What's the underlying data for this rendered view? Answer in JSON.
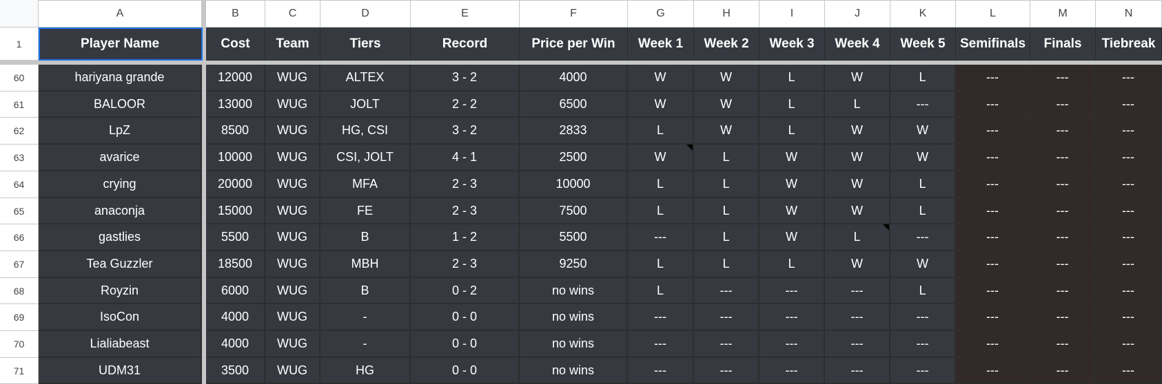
{
  "columns": [
    "A",
    "B",
    "C",
    "D",
    "E",
    "F",
    "G",
    "H",
    "I",
    "J",
    "K",
    "L",
    "M",
    "N"
  ],
  "headers": [
    "Player Name",
    "Cost",
    "Team",
    "Tiers",
    "Record",
    "Price per Win",
    "Week 1",
    "Week 2",
    "Week 3",
    "Week 4",
    "Week 5",
    "Semifinals",
    "Finals",
    "Tiebreak"
  ],
  "header_row_number": "1",
  "selected_cell": "A1",
  "rows": [
    {
      "num": "60",
      "cells": [
        "hariyana grande",
        "12000",
        "WUG",
        "ALTEX",
        "3 - 2",
        "4000",
        "W",
        "W",
        "L",
        "W",
        "L",
        "---",
        "---",
        "---"
      ]
    },
    {
      "num": "61",
      "cells": [
        "BALOOR",
        "13000",
        "WUG",
        "JOLT",
        "2 - 2",
        "6500",
        "W",
        "W",
        "L",
        "L",
        "---",
        "---",
        "---",
        "---"
      ]
    },
    {
      "num": "62",
      "cells": [
        "LpZ",
        "8500",
        "WUG",
        "HG, CSI",
        "3 - 2",
        "2833",
        "L",
        "W",
        "L",
        "W",
        "W",
        "---",
        "---",
        "---"
      ]
    },
    {
      "num": "63",
      "cells": [
        "avarice",
        "10000",
        "WUG",
        "CSI, JOLT",
        "4 - 1",
        "2500",
        "W",
        "L",
        "W",
        "W",
        "W",
        "---",
        "---",
        "---"
      ]
    },
    {
      "num": "64",
      "cells": [
        "crying",
        "20000",
        "WUG",
        "MFA",
        "2 - 3",
        "10000",
        "L",
        "L",
        "W",
        "W",
        "L",
        "---",
        "---",
        "---"
      ]
    },
    {
      "num": "65",
      "cells": [
        "anaconja",
        "15000",
        "WUG",
        "FE",
        "2 - 3",
        "7500",
        "L",
        "L",
        "W",
        "W",
        "L",
        "---",
        "---",
        "---"
      ]
    },
    {
      "num": "66",
      "cells": [
        "gastlies",
        "5500",
        "WUG",
        "B",
        "1 - 2",
        "5500",
        "---",
        "L",
        "W",
        "L",
        "---",
        "---",
        "---",
        "---"
      ]
    },
    {
      "num": "67",
      "cells": [
        "Tea Guzzler",
        "18500",
        "WUG",
        "MBH",
        "2 - 3",
        "9250",
        "L",
        "L",
        "L",
        "W",
        "W",
        "---",
        "---",
        "---"
      ]
    },
    {
      "num": "68",
      "cells": [
        "Royzin",
        "6000",
        "WUG",
        "B",
        "0 - 2",
        "no wins",
        "L",
        "---",
        "---",
        "---",
        "L",
        "---",
        "---",
        "---"
      ]
    },
    {
      "num": "69",
      "cells": [
        "IsoCon",
        "4000",
        "WUG",
        "-",
        "0 - 0",
        "no wins",
        "---",
        "---",
        "---",
        "---",
        "---",
        "---",
        "---",
        "---"
      ]
    },
    {
      "num": "70",
      "cells": [
        "Lialiabeast",
        "4000",
        "WUG",
        "-",
        "0 - 0",
        "no wins",
        "---",
        "---",
        "---",
        "---",
        "---",
        "---",
        "---",
        "---"
      ]
    },
    {
      "num": "71",
      "cells": [
        "UDM31",
        "3500",
        "WUG",
        "HG",
        "0 - 0",
        "no wins",
        "---",
        "---",
        "---",
        "---",
        "---",
        "---",
        "---",
        "---"
      ]
    }
  ],
  "comment_cells": [
    "G63",
    "J66"
  ],
  "colors": {
    "cell_bg": "#363940",
    "playoff_bg": "#312a29",
    "text": "#ffffff",
    "selection": "#1a73e8"
  }
}
